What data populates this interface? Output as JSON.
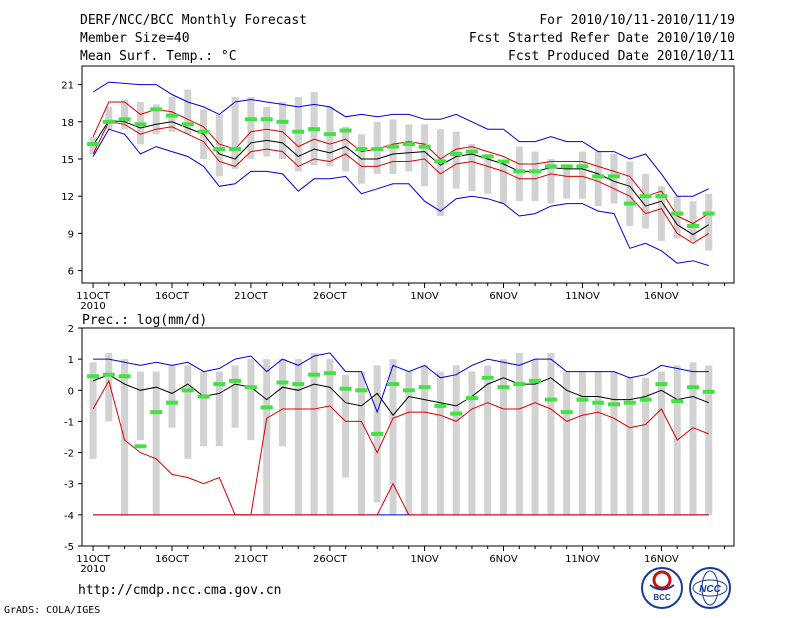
{
  "header": {
    "title": "DERF/NCC/BCC Monthly Forecast",
    "member_size": "Member Size=40",
    "variable_label": "Mean Surf. Temp.: °C",
    "forecast_period": "For 2010/10/11-2010/11/19",
    "started_refer": "Fcst Started Refer Date 2010/10/10",
    "produced": "Fcst Produced Date 2010/10/11"
  },
  "footer": {
    "url": "http://cmdp.ncc.cma.gov.cn",
    "credit": "GrADS: COLA/IGES",
    "logo_left_text": "BCC",
    "logo_right_text": "NCC"
  },
  "colors": {
    "spread_box": "#d2d2d2",
    "ensemble_mean": "#000000",
    "control": "#44e044",
    "envelope": "#0000dd",
    "inner_band": "#dd0000"
  },
  "chart_data": [
    {
      "type": "line",
      "title": "Mean Surf. Temp.: °C",
      "xlabel": "",
      "ylabel": "°C",
      "ylim": [
        5,
        22.5
      ],
      "yticks": [
        6,
        9,
        12,
        15,
        18,
        21
      ],
      "x": [
        11,
        12,
        13,
        14,
        15,
        16,
        17,
        18,
        19,
        20,
        21,
        22,
        23,
        24,
        25,
        26,
        27,
        28,
        29,
        30,
        31,
        32,
        33,
        34,
        35,
        36,
        37,
        38,
        39,
        40,
        41,
        42,
        43,
        44,
        45,
        46,
        47,
        48,
        49,
        50
      ],
      "xtick_labels": [
        {
          "x": 11,
          "label": "11OCT",
          "sub": "2010"
        },
        {
          "x": 16,
          "label": "16OCT"
        },
        {
          "x": 21,
          "label": "21OCT"
        },
        {
          "x": 26,
          "label": "26OCT"
        },
        {
          "x": 32,
          "label": "1NOV"
        },
        {
          "x": 37,
          "label": "6NOV"
        },
        {
          "x": 42,
          "label": "11NOV"
        },
        {
          "x": 47,
          "label": "16NOV"
        }
      ],
      "series": [
        {
          "name": "box_low",
          "values": [
            15.4,
            17.4,
            17.4,
            16.2,
            17.0,
            17.2,
            17.0,
            15.0,
            13.6,
            14.2,
            15.0,
            15.2,
            15.0,
            14.0,
            14.5,
            14.4,
            14.0,
            13.0,
            13.8,
            13.8,
            14.0,
            12.8,
            10.4,
            12.6,
            12.4,
            12.2,
            11.4,
            11.6,
            11.6,
            11.4,
            11.8,
            11.8,
            11.2,
            11.4,
            9.6,
            9.4,
            8.4,
            8.6,
            8.4,
            7.6
          ]
        },
        {
          "name": "box_high",
          "values": [
            16.8,
            19.2,
            19.8,
            19.6,
            19.4,
            20.0,
            20.6,
            19.0,
            18.6,
            20.0,
            20.0,
            19.2,
            19.6,
            20.0,
            20.4,
            19.2,
            17.6,
            17.0,
            18.0,
            18.2,
            17.8,
            17.8,
            17.4,
            17.2,
            16.2,
            15.4,
            14.8,
            16.0,
            15.6,
            15.0,
            14.4,
            15.6,
            15.6,
            15.4,
            14.8,
            13.8,
            12.8,
            12.0,
            11.6,
            12.2
          ]
        },
        {
          "name": "ensemble_mean",
          "values": [
            16.1,
            18.1,
            18.0,
            17.5,
            17.8,
            18.0,
            17.5,
            17.0,
            15.4,
            15.0,
            16.3,
            16.5,
            16.3,
            15.2,
            15.8,
            15.5,
            16.0,
            15.0,
            15.0,
            15.4,
            15.5,
            15.6,
            14.5,
            15.2,
            15.4,
            15.0,
            14.6,
            14.0,
            14.0,
            14.3,
            14.2,
            14.2,
            13.8,
            13.2,
            12.8,
            11.2,
            11.6,
            9.7,
            8.9,
            9.7
          ]
        },
        {
          "name": "control",
          "values": [
            16.2,
            18.0,
            18.2,
            17.8,
            19.0,
            18.5,
            17.8,
            17.2,
            15.8,
            15.8,
            18.2,
            18.2,
            18.0,
            17.2,
            17.4,
            17.0,
            17.3,
            15.8,
            15.8,
            16.0,
            16.2,
            16.0,
            14.8,
            15.4,
            15.6,
            15.2,
            14.8,
            14.0,
            14.0,
            14.4,
            14.4,
            14.4,
            13.6,
            13.6,
            11.4,
            12.0,
            12.0,
            10.6,
            9.6,
            10.6
          ]
        },
        {
          "name": "upper_band",
          "values": [
            16.8,
            19.6,
            19.6,
            18.6,
            19.0,
            18.8,
            18.2,
            17.6,
            16.2,
            15.8,
            17.2,
            17.4,
            17.2,
            16.0,
            16.6,
            16.2,
            16.6,
            15.6,
            15.8,
            16.2,
            16.4,
            16.2,
            15.0,
            15.8,
            16.0,
            15.6,
            15.2,
            14.6,
            14.6,
            14.8,
            14.8,
            14.8,
            14.4,
            14.0,
            13.6,
            12.0,
            12.4,
            10.4,
            9.8,
            10.6
          ]
        },
        {
          "name": "lower_band",
          "values": [
            15.4,
            18.0,
            17.8,
            17.0,
            17.4,
            17.6,
            17.0,
            16.4,
            14.8,
            14.4,
            15.6,
            15.8,
            15.6,
            14.4,
            15.0,
            14.8,
            15.4,
            14.4,
            14.4,
            14.8,
            14.8,
            15.0,
            13.8,
            14.6,
            14.8,
            14.4,
            14.0,
            13.4,
            13.4,
            13.8,
            13.6,
            13.6,
            13.2,
            12.6,
            12.0,
            10.6,
            11.0,
            9.0,
            8.2,
            9.0
          ]
        },
        {
          "name": "upper_envelope",
          "values": [
            20.4,
            21.2,
            21.1,
            21.0,
            21.0,
            20.2,
            19.6,
            19.2,
            18.6,
            19.6,
            19.8,
            19.6,
            19.4,
            19.2,
            19.4,
            19.2,
            18.4,
            18.6,
            18.4,
            18.6,
            18.6,
            18.2,
            18.2,
            18.6,
            18.0,
            17.4,
            17.4,
            16.4,
            16.4,
            16.8,
            16.4,
            16.4,
            15.6,
            15.6,
            15.0,
            15.4,
            13.8,
            12.0,
            12.0,
            12.6
          ]
        },
        {
          "name": "lower_envelope",
          "values": [
            15.2,
            17.4,
            17.0,
            15.4,
            16.0,
            15.6,
            15.2,
            14.4,
            12.8,
            13.0,
            14.0,
            14.0,
            13.8,
            12.4,
            13.4,
            13.4,
            13.6,
            12.2,
            12.6,
            13.0,
            13.0,
            11.6,
            10.8,
            11.8,
            12.0,
            11.8,
            11.4,
            10.4,
            10.6,
            11.2,
            11.4,
            11.4,
            10.8,
            10.6,
            7.8,
            8.2,
            7.6,
            6.6,
            6.8,
            6.4
          ]
        }
      ]
    },
    {
      "type": "line",
      "title": "Prec.: log(mm/d)",
      "xlabel": "",
      "ylabel": "log(mm/d)",
      "ylim": [
        -5,
        2
      ],
      "yticks": [
        -5,
        -4,
        -3,
        -2,
        -1,
        0,
        1,
        2
      ],
      "x": [
        11,
        12,
        13,
        14,
        15,
        16,
        17,
        18,
        19,
        20,
        21,
        22,
        23,
        24,
        25,
        26,
        27,
        28,
        29,
        30,
        31,
        32,
        33,
        34,
        35,
        36,
        37,
        38,
        39,
        40,
        41,
        42,
        43,
        44,
        45,
        46,
        47,
        48,
        49,
        50
      ],
      "xtick_labels": [
        {
          "x": 11,
          "label": "11OCT",
          "sub": "2010"
        },
        {
          "x": 16,
          "label": "16OCT"
        },
        {
          "x": 21,
          "label": "21OCT"
        },
        {
          "x": 26,
          "label": "26OCT"
        },
        {
          "x": 32,
          "label": "1NOV"
        },
        {
          "x": 37,
          "label": "6NOV"
        },
        {
          "x": 42,
          "label": "11NOV"
        },
        {
          "x": 47,
          "label": "16NOV"
        }
      ],
      "series": [
        {
          "name": "box_low",
          "values": [
            -2.2,
            -1.0,
            -4.0,
            -1.6,
            -4.0,
            -1.2,
            -2.2,
            -1.8,
            -1.8,
            -1.2,
            -1.6,
            -4.0,
            -1.8,
            -4.0,
            -4.0,
            -4.0,
            -2.8,
            -4.0,
            -3.6,
            -4.0,
            -4.0,
            -4.0,
            -4.0,
            -4.0,
            -4.0,
            -4.0,
            -4.0,
            -4.0,
            -4.0,
            -4.0,
            -4.0,
            -4.0,
            -4.0,
            -4.0,
            -4.0,
            -4.0,
            -4.0,
            -4.0,
            -4.0,
            -4.0
          ]
        },
        {
          "name": "box_high",
          "values": [
            0.9,
            1.2,
            1.0,
            0.6,
            0.6,
            0.8,
            0.8,
            0.6,
            0.6,
            0.8,
            1.0,
            1.0,
            1.0,
            1.0,
            1.2,
            1.0,
            0.5,
            0.6,
            0.8,
            1.0,
            0.6,
            0.8,
            0.6,
            0.8,
            0.6,
            0.8,
            1.0,
            1.2,
            1.0,
            1.2,
            0.6,
            0.6,
            0.6,
            0.6,
            0.4,
            0.4,
            0.6,
            0.8,
            0.9,
            0.8
          ]
        },
        {
          "name": "ensemble_mean",
          "values": [
            0.3,
            0.5,
            0.2,
            0.0,
            0.1,
            -0.1,
            0.2,
            -0.2,
            -0.1,
            0.2,
            0.1,
            -0.3,
            0.1,
            0.0,
            0.2,
            0.1,
            -0.4,
            -0.5,
            -0.1,
            -0.8,
            -0.2,
            -0.3,
            -0.4,
            -0.5,
            -0.2,
            0.2,
            0.4,
            0.2,
            0.2,
            0.4,
            0.0,
            -0.2,
            -0.2,
            -0.3,
            -0.3,
            -0.2,
            0.0,
            -0.3,
            -0.2,
            -0.4
          ]
        },
        {
          "name": "control",
          "values": [
            0.45,
            0.5,
            0.45,
            -1.8,
            -0.7,
            -0.4,
            0.0,
            -0.2,
            0.2,
            0.3,
            0.1,
            -0.55,
            0.25,
            0.2,
            0.5,
            0.55,
            0.05,
            0.0,
            -1.4,
            0.2,
            0.0,
            0.1,
            -0.5,
            -0.75,
            -0.25,
            0.4,
            0.1,
            0.2,
            0.3,
            -0.3,
            -0.7,
            -0.3,
            -0.4,
            -0.45,
            -0.4,
            -0.3,
            0.2,
            -0.35,
            0.1,
            -0.05
          ]
        },
        {
          "name": "upper_band",
          "values": [
            -0.6,
            0.3,
            -1.6,
            -2.0,
            -2.2,
            -2.7,
            -2.8,
            -3.0,
            -2.8,
            -4.0,
            -4.0,
            -0.9,
            -0.6,
            -0.6,
            -0.6,
            -0.5,
            -1.0,
            -1.0,
            -2.0,
            -0.9,
            -0.7,
            -0.7,
            -0.8,
            -1.0,
            -0.6,
            -0.4,
            -0.6,
            -0.6,
            -0.4,
            -0.6,
            -1.0,
            -0.8,
            -0.7,
            -0.9,
            -1.2,
            -1.1,
            -0.6,
            -1.6,
            -1.2,
            -1.4
          ]
        },
        {
          "name": "lower_band",
          "values": [
            -4.0,
            -4.0,
            -4.0,
            -4.0,
            -4.0,
            -4.0,
            -4.0,
            -4.0,
            -4.0,
            -4.0,
            -4.0,
            -4.0,
            -4.0,
            -4.0,
            -4.0,
            -4.0,
            -4.0,
            -4.0,
            -4.0,
            -3.0,
            -4.0,
            -4.0,
            -4.0,
            -4.0,
            -4.0,
            -4.0,
            -4.0,
            -4.0,
            -4.0,
            -4.0,
            -4.0,
            -4.0,
            -4.0,
            -4.0,
            -4.0,
            -4.0,
            -4.0,
            -4.0,
            -4.0,
            -4.0
          ]
        },
        {
          "name": "upper_envelope",
          "values": [
            1.0,
            1.0,
            0.9,
            0.8,
            0.9,
            0.8,
            0.9,
            0.6,
            0.7,
            1.0,
            1.1,
            0.6,
            1.0,
            0.8,
            1.1,
            1.2,
            0.6,
            0.6,
            -0.7,
            0.8,
            0.6,
            0.8,
            0.4,
            0.5,
            0.8,
            1.0,
            0.9,
            0.8,
            1.0,
            1.0,
            0.6,
            0.6,
            0.6,
            0.6,
            0.4,
            0.5,
            0.8,
            0.7,
            0.6,
            0.6
          ]
        },
        {
          "name": "lower_envelope",
          "values": [
            -4.0,
            -4.0,
            -4.0,
            -4.0,
            -4.0,
            -4.0,
            -4.0,
            -4.0,
            -4.0,
            -4.0,
            -4.0,
            -4.0,
            -4.0,
            -4.0,
            -4.0,
            -4.0,
            -4.0,
            -4.0,
            -4.0,
            -4.0,
            -4.0,
            -4.0,
            -4.0,
            -4.0,
            -4.0,
            -4.0,
            -4.0,
            -4.0,
            -4.0,
            -4.0,
            -4.0,
            -4.0,
            -4.0,
            -4.0,
            -4.0,
            -4.0,
            -4.0,
            -4.0,
            -4.0,
            -4.0
          ]
        }
      ]
    }
  ]
}
